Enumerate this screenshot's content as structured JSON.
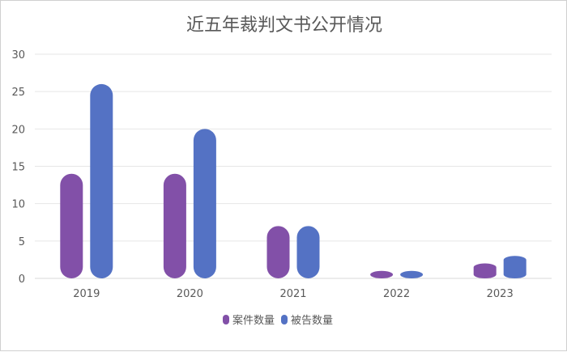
{
  "chart_data": {
    "type": "bar",
    "title": "近五年裁判文书公开情况",
    "categories": [
      "2019",
      "2020",
      "2021",
      "2022",
      "2023"
    ],
    "series": [
      {
        "name": "案件数量",
        "values": [
          14,
          14,
          7,
          1,
          2
        ],
        "color": "#8250a8"
      },
      {
        "name": "被告数量",
        "values": [
          26,
          20,
          7,
          1,
          3
        ],
        "color": "#5472c4"
      }
    ],
    "ylim": [
      0,
      30
    ],
    "yticks": [
      "0",
      "5",
      "10",
      "15",
      "20",
      "25",
      "30"
    ],
    "xlabel": "",
    "ylabel": "",
    "grid": true,
    "legend_position": "bottom"
  }
}
